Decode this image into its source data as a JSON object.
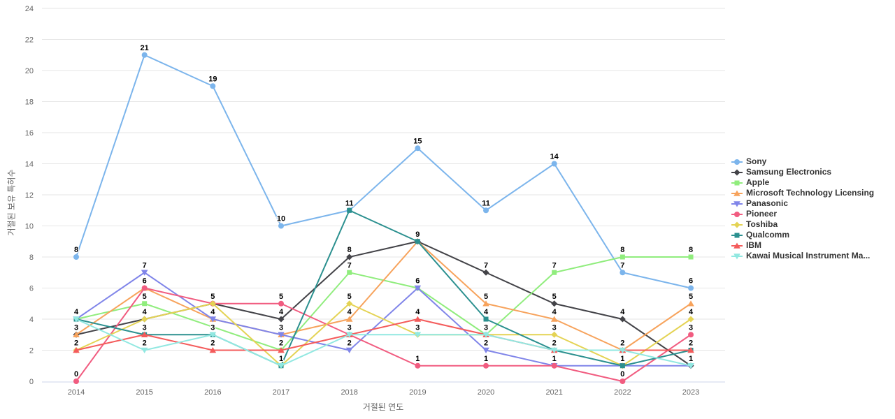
{
  "chart_data": {
    "type": "line",
    "title": "",
    "xlabel": "거절된 연도",
    "ylabel": "거절된 보유 특허수",
    "categories": [
      "2014",
      "2015",
      "2016",
      "2017",
      "2018",
      "2019",
      "2020",
      "2021",
      "2022",
      "2023"
    ],
    "ylim": [
      0,
      24
    ],
    "ytick_step": 2,
    "grid": "horizontal",
    "legend_position": "right",
    "colors": {
      "grid_line": "#e6e6e6",
      "axis_line": "#ccd6eb",
      "tick_text": "#666666",
      "legend_text": "#333333",
      "data_label": "#000000"
    },
    "series": [
      {
        "name": "Sony",
        "color": "#7cb5ec",
        "marker": "circle",
        "values": [
          8,
          21,
          19,
          10,
          11,
          15,
          11,
          14,
          7,
          6
        ]
      },
      {
        "name": "Samsung Electronics",
        "color": "#434348",
        "marker": "diamond",
        "values": [
          3,
          4,
          5,
          4,
          8,
          9,
          7,
          5,
          4,
          1
        ]
      },
      {
        "name": "Apple",
        "color": "#90ed7d",
        "marker": "square",
        "values": [
          4,
          5,
          null,
          2,
          7,
          6,
          3,
          7,
          8,
          8
        ]
      },
      {
        "name": "Microsoft Technology Licensing",
        "color": "#f7a35c",
        "marker": "triangle",
        "values": [
          3,
          6,
          4,
          3,
          4,
          9,
          5,
          4,
          2,
          5
        ]
      },
      {
        "name": "Panasonic",
        "color": "#8085e9",
        "marker": "triangle-down",
        "values": [
          4,
          7,
          4,
          3,
          2,
          6,
          2,
          1,
          1,
          1
        ]
      },
      {
        "name": "Pioneer",
        "color": "#f15c80",
        "marker": "circle",
        "values": [
          0,
          6,
          5,
          5,
          3,
          1,
          1,
          1,
          0,
          3
        ]
      },
      {
        "name": "Toshiba",
        "color": "#e4d354",
        "marker": "diamond",
        "values": [
          2,
          4,
          5,
          1,
          5,
          3,
          3,
          3,
          1,
          4
        ]
      },
      {
        "name": "Qualcomm",
        "color": "#2b908f",
        "marker": "square",
        "values": [
          4,
          3,
          3,
          1,
          11,
          9,
          4,
          2,
          1,
          2
        ]
      },
      {
        "name": "IBM",
        "color": "#f45b5b",
        "marker": "triangle",
        "values": [
          2,
          3,
          2,
          2,
          3,
          4,
          3,
          2,
          2,
          2
        ]
      },
      {
        "name": "Kawai Musical Instrument Ma...",
        "color": "#91e8e1",
        "marker": "triangle-down",
        "values": [
          4,
          2,
          3,
          1,
          3,
          3,
          3,
          2,
          2,
          1
        ]
      }
    ]
  }
}
